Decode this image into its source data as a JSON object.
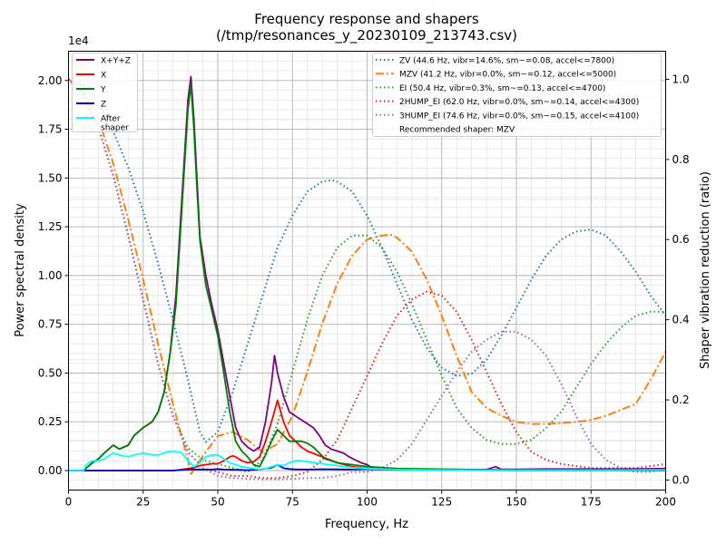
{
  "chart_data": {
    "type": "line",
    "title": "Frequency response and shapers",
    "subtitle": "(/tmp/resonances_y_20230109_213743.csv)",
    "xlabel": "Frequency, Hz",
    "ylabel": "Power spectral density",
    "y2label": "Shaper vibration reduction (ratio)",
    "y_offset_label": "1e4",
    "xlim": [
      0,
      200
    ],
    "ylim": [
      -1000,
      21500
    ],
    "y2lim": [
      -0.025,
      1.07
    ],
    "x_ticks": [
      0,
      25,
      50,
      75,
      100,
      125,
      150,
      175,
      200
    ],
    "y_ticks": [
      0,
      2500,
      5000,
      7500,
      10000,
      12500,
      15000,
      17500,
      20000
    ],
    "y_tick_labels": [
      "0.00",
      "0.25",
      "0.50",
      "0.75",
      "1.00",
      "1.25",
      "1.50",
      "1.75",
      "2.00"
    ],
    "y2_ticks": [
      0.0,
      0.2,
      0.4,
      0.6,
      0.8,
      1.0
    ],
    "y2_tick_labels": [
      "0.0",
      "0.2",
      "0.4",
      "0.6",
      "0.8",
      "1.0"
    ],
    "grid": true,
    "legend_placement": "top-left",
    "legend2_placement": "top-right",
    "series": [
      {
        "name": "X+Y+Z",
        "color": "#800080",
        "axis": "left",
        "style": "solid",
        "x": [
          0,
          5,
          8,
          10,
          12,
          15,
          17,
          20,
          22,
          25,
          28,
          30,
          32,
          34,
          36,
          38,
          40,
          41,
          42,
          43,
          44,
          46,
          48,
          50,
          52,
          54,
          56,
          58,
          60,
          62,
          64,
          66,
          67,
          68,
          69,
          70,
          72,
          74,
          76,
          78,
          80,
          82,
          84,
          86,
          88,
          90,
          92,
          94,
          96,
          98,
          100,
          102,
          105,
          110,
          115,
          120,
          125,
          130,
          135,
          140,
          142,
          143,
          145,
          150,
          160,
          170,
          180,
          190,
          200
        ],
        "y": [
          0,
          0,
          400,
          600,
          900,
          1300,
          1100,
          1300,
          1800,
          2200,
          2500,
          3000,
          4000,
          6000,
          9000,
          14000,
          19000,
          20200,
          18000,
          15000,
          12000,
          10000,
          8500,
          7200,
          5500,
          3800,
          2200,
          1500,
          1200,
          1000,
          1200,
          2500,
          3500,
          4500,
          5900,
          5000,
          3800,
          3000,
          2800,
          2600,
          2400,
          2200,
          1800,
          1300,
          1100,
          1000,
          900,
          700,
          550,
          400,
          300,
          100,
          100,
          80,
          60,
          60,
          50,
          50,
          50,
          50,
          150,
          200,
          60,
          60,
          80,
          80,
          80,
          90,
          100
        ]
      },
      {
        "name": "X",
        "color": "#ff0000",
        "axis": "left",
        "style": "solid",
        "x": [
          0,
          35,
          38,
          40,
          42,
          44,
          46,
          48,
          50,
          52,
          54,
          55,
          56,
          58,
          60,
          62,
          64,
          66,
          68,
          70,
          72,
          74,
          76,
          78,
          80,
          85,
          90,
          95,
          100,
          110,
          130,
          150,
          200
        ],
        "y": [
          0,
          0,
          50,
          100,
          150,
          250,
          300,
          350,
          350,
          500,
          700,
          750,
          700,
          500,
          400,
          450,
          700,
          1500,
          2500,
          3600,
          2500,
          1800,
          1500,
          1200,
          1000,
          700,
          400,
          200,
          100,
          50,
          30,
          20,
          20
        ]
      },
      {
        "name": "Y",
        "color": "#008000",
        "axis": "left",
        "style": "solid",
        "x": [
          0,
          5,
          8,
          10,
          12,
          15,
          17,
          20,
          22,
          25,
          28,
          30,
          32,
          34,
          36,
          38,
          40,
          41,
          42,
          43,
          44,
          46,
          48,
          50,
          52,
          54,
          56,
          58,
          60,
          62,
          64,
          66,
          68,
          70,
          72,
          74,
          76,
          78,
          80,
          82,
          84,
          86,
          88,
          90,
          95,
          100,
          110,
          130,
          150,
          200
        ],
        "y": [
          0,
          0,
          400,
          600,
          900,
          1300,
          1100,
          1300,
          1800,
          2200,
          2500,
          3000,
          4000,
          6000,
          8500,
          13500,
          18500,
          19800,
          17500,
          14500,
          11800,
          9500,
          8200,
          6900,
          5000,
          3000,
          1500,
          1000,
          700,
          300,
          200,
          800,
          1500,
          2100,
          1800,
          1500,
          1500,
          1500,
          1400,
          1200,
          900,
          600,
          500,
          400,
          300,
          200,
          100,
          60,
          30,
          20
        ]
      },
      {
        "name": "Z",
        "color": "#0000cc",
        "axis": "left",
        "style": "solid",
        "x": [
          0,
          35,
          40,
          42,
          44,
          46,
          48,
          50,
          52,
          55,
          58,
          60,
          62,
          64,
          66,
          68,
          70,
          72,
          74,
          76,
          80,
          85,
          90,
          95,
          100,
          105,
          110,
          120,
          130,
          150,
          200
        ],
        "y": [
          0,
          0,
          50,
          60,
          50,
          50,
          50,
          80,
          50,
          40,
          30,
          20,
          40,
          50,
          100,
          150,
          300,
          120,
          80,
          60,
          50,
          70,
          60,
          50,
          80,
          60,
          40,
          30,
          20,
          10,
          10
        ]
      },
      {
        "name": "After\nshaper",
        "color": "#00ffff",
        "axis": "left",
        "style": "solid",
        "x": [
          0,
          5,
          6,
          8,
          10,
          12,
          15,
          17,
          20,
          22,
          25,
          28,
          30,
          33,
          35,
          38,
          40,
          42,
          44,
          46,
          48,
          50,
          52,
          54,
          56,
          58,
          60,
          62,
          64,
          66,
          68,
          70,
          72,
          74,
          76,
          78,
          80,
          85,
          90,
          95,
          100,
          110,
          120,
          140,
          160,
          180,
          200
        ],
        "y": [
          0,
          0,
          300,
          500,
          500,
          600,
          900,
          800,
          700,
          800,
          900,
          800,
          800,
          950,
          1000,
          900,
          500,
          200,
          400,
          700,
          800,
          800,
          600,
          400,
          300,
          200,
          150,
          100,
          50,
          100,
          200,
          300,
          250,
          400,
          500,
          500,
          450,
          350,
          250,
          150,
          100,
          50,
          30,
          20,
          20,
          20,
          30
        ]
      }
    ],
    "shapers": [
      {
        "name": "ZV (44.6 Hz, vibr=14.6%, sm~=0.08, accel<=7800)",
        "color": "#1f77b4",
        "style": "dotted",
        "x": [
          0,
          5,
          10,
          15,
          20,
          25,
          30,
          35,
          40,
          44,
          46,
          50,
          55,
          60,
          65,
          70,
          75,
          80,
          85,
          88,
          90,
          95,
          100,
          105,
          110,
          115,
          120,
          125,
          130,
          135,
          140,
          145,
          150,
          155,
          160,
          165,
          170,
          175,
          180,
          185,
          190,
          195,
          200
        ],
        "y": [
          1.0,
          0.985,
          0.94,
          0.87,
          0.78,
          0.67,
          0.54,
          0.4,
          0.25,
          0.12,
          0.095,
          0.12,
          0.22,
          0.34,
          0.46,
          0.58,
          0.66,
          0.72,
          0.745,
          0.748,
          0.745,
          0.72,
          0.66,
          0.58,
          0.49,
          0.4,
          0.33,
          0.28,
          0.26,
          0.265,
          0.3,
          0.36,
          0.43,
          0.5,
          0.56,
          0.6,
          0.62,
          0.625,
          0.61,
          0.57,
          0.52,
          0.46,
          0.41
        ]
      },
      {
        "name": "MZV (41.2 Hz, vibr=0.0%, sm~=0.12, accel<=5000)",
        "color": "#ff7f0e",
        "style": "dashdot",
        "x": [
          0,
          5,
          10,
          15,
          20,
          25,
          30,
          35,
          40,
          41,
          45,
          50,
          55,
          60,
          65,
          70,
          75,
          80,
          85,
          90,
          95,
          100,
          105,
          108,
          110,
          115,
          120,
          125,
          130,
          135,
          140,
          145,
          150,
          155,
          160,
          165,
          170,
          175,
          180,
          190,
          195,
          200
        ],
        "y": [
          1.0,
          0.97,
          0.9,
          0.79,
          0.65,
          0.5,
          0.34,
          0.19,
          0.05,
          0.015,
          0.06,
          0.11,
          0.12,
          0.1,
          0.07,
          0.09,
          0.16,
          0.27,
          0.39,
          0.49,
          0.56,
          0.6,
          0.61,
          0.612,
          0.605,
          0.57,
          0.5,
          0.41,
          0.31,
          0.22,
          0.18,
          0.16,
          0.145,
          0.14,
          0.14,
          0.142,
          0.145,
          0.15,
          0.16,
          0.19,
          0.25,
          0.32
        ]
      },
      {
        "name": "EI (50.4 Hz, vibr=0.3%, sm~=0.13, accel<=4700)",
        "color": "#2ca02c",
        "style": "dotted",
        "x": [
          0,
          5,
          10,
          15,
          20,
          25,
          30,
          35,
          40,
          45,
          50,
          55,
          60,
          65,
          70,
          75,
          80,
          85,
          90,
          95,
          100,
          105,
          110,
          115,
          120,
          125,
          130,
          135,
          140,
          145,
          150,
          155,
          160,
          165,
          170,
          175,
          180,
          185,
          190,
          195,
          200
        ],
        "y": [
          1.0,
          0.96,
          0.88,
          0.76,
          0.61,
          0.45,
          0.29,
          0.16,
          0.08,
          0.05,
          0.04,
          0.03,
          0.02,
          0.05,
          0.14,
          0.27,
          0.4,
          0.51,
          0.58,
          0.61,
          0.61,
          0.58,
          0.52,
          0.44,
          0.35,
          0.26,
          0.18,
          0.13,
          0.1,
          0.09,
          0.09,
          0.1,
          0.13,
          0.17,
          0.23,
          0.29,
          0.34,
          0.38,
          0.41,
          0.42,
          0.42
        ]
      },
      {
        "name": "2HUMP_EI (62.0 Hz, vibr=0.0%, sm~=0.14, accel<=4300)",
        "color": "#d62728",
        "style": "dotted",
        "x": [
          0,
          5,
          10,
          15,
          20,
          25,
          30,
          35,
          40,
          45,
          50,
          55,
          60,
          65,
          70,
          75,
          80,
          85,
          90,
          95,
          100,
          105,
          110,
          115,
          120,
          125,
          130,
          135,
          140,
          145,
          150,
          155,
          160,
          165,
          170,
          175,
          180,
          185,
          190,
          195,
          200
        ],
        "y": [
          1.0,
          0.96,
          0.88,
          0.76,
          0.61,
          0.45,
          0.29,
          0.16,
          0.07,
          0.03,
          0.02,
          0.01,
          0.01,
          0.005,
          0.005,
          0.01,
          0.02,
          0.05,
          0.1,
          0.18,
          0.26,
          0.34,
          0.41,
          0.45,
          0.47,
          0.46,
          0.42,
          0.35,
          0.27,
          0.19,
          0.12,
          0.07,
          0.05,
          0.04,
          0.035,
          0.03,
          0.03,
          0.03,
          0.03,
          0.035,
          0.04
        ]
      },
      {
        "name": "3HUMP_EI (74.6 Hz, vibr=0.0%, sm~=0.15, accel<=4100)",
        "color": "#9467bd",
        "style": "dotted",
        "x": [
          0,
          5,
          10,
          15,
          20,
          25,
          30,
          35,
          40,
          45,
          50,
          55,
          60,
          65,
          70,
          75,
          80,
          85,
          90,
          95,
          100,
          105,
          110,
          115,
          120,
          125,
          130,
          135,
          140,
          145,
          150,
          155,
          160,
          165,
          170,
          175,
          180,
          185,
          190,
          195,
          200
        ],
        "y": [
          1.0,
          0.96,
          0.88,
          0.76,
          0.61,
          0.45,
          0.29,
          0.16,
          0.07,
          0.03,
          0.01,
          0.005,
          0.003,
          0.002,
          0.002,
          0.003,
          0.005,
          0.005,
          0.01,
          0.02,
          0.02,
          0.03,
          0.05,
          0.09,
          0.15,
          0.21,
          0.27,
          0.32,
          0.35,
          0.37,
          0.37,
          0.35,
          0.31,
          0.24,
          0.16,
          0.09,
          0.05,
          0.03,
          0.02,
          0.02,
          0.03
        ]
      }
    ],
    "recommended_text": "Recommended shaper: MZV"
  }
}
